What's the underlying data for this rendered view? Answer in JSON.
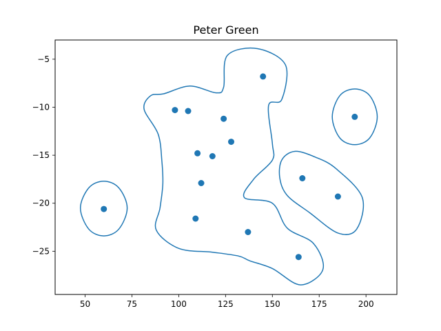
{
  "chart_data": {
    "type": "scatter",
    "title": "Peter Green",
    "xlabel": "",
    "ylabel": "",
    "xlim": [
      34,
      216.5
    ],
    "ylim": [
      -29.5,
      -3
    ],
    "xticks": [
      50,
      75,
      100,
      125,
      150,
      175,
      200
    ],
    "yticks": [
      -5,
      -10,
      -15,
      -20,
      -25
    ],
    "xtick_labels": [
      "50",
      "75",
      "100",
      "125",
      "150",
      "175",
      "200"
    ],
    "ytick_labels": [
      "−5",
      "−10",
      "−15",
      "−20",
      "−25"
    ],
    "grid": false,
    "legend": "none",
    "colors": {
      "series": "#1f77b4",
      "axes": "#000000",
      "background": "#ffffff"
    },
    "points": [
      {
        "x": 60,
        "y": -20.6
      },
      {
        "x": 98,
        "y": -10.3
      },
      {
        "x": 105,
        "y": -10.4
      },
      {
        "x": 110,
        "y": -14.8
      },
      {
        "x": 118,
        "y": -15.1
      },
      {
        "x": 112,
        "y": -17.9
      },
      {
        "x": 109,
        "y": -21.6
      },
      {
        "x": 124,
        "y": -11.2
      },
      {
        "x": 128,
        "y": -13.6
      },
      {
        "x": 145,
        "y": -6.8
      },
      {
        "x": 137,
        "y": -23.0
      },
      {
        "x": 164,
        "y": -25.6
      },
      {
        "x": 166,
        "y": -17.4
      },
      {
        "x": 185,
        "y": -19.3
      },
      {
        "x": 194,
        "y": -11.0
      }
    ],
    "contours": [
      [
        [
          60,
          -17.7
        ],
        [
          68,
          -18.4
        ],
        [
          72.5,
          -20.5
        ],
        [
          68,
          -22.7
        ],
        [
          60,
          -23.4
        ],
        [
          52,
          -22.7
        ],
        [
          47.5,
          -20.5
        ],
        [
          52,
          -18.4
        ]
      ],
      [
        [
          194,
          -8.1
        ],
        [
          202,
          -8.8
        ],
        [
          206,
          -11.0
        ],
        [
          202,
          -13.2
        ],
        [
          194,
          -13.9
        ],
        [
          186,
          -13.2
        ],
        [
          182,
          -11.0
        ],
        [
          186,
          -8.8
        ]
      ],
      [
        [
          162,
          -14.6
        ],
        [
          173,
          -15.2
        ],
        [
          184,
          -16.4
        ],
        [
          198,
          -19.4
        ],
        [
          195,
          -22.7
        ],
        [
          185,
          -23.1
        ],
        [
          170,
          -21.0
        ],
        [
          158,
          -19.2
        ],
        [
          154,
          -17.4
        ],
        [
          155,
          -15.5
        ]
      ],
      [
        [
          92,
          -8.6
        ],
        [
          106,
          -7.8
        ],
        [
          120,
          -8.5
        ],
        [
          124,
          -7.9
        ],
        [
          126,
          -4.6
        ],
        [
          142,
          -3.9
        ],
        [
          157,
          -5.6
        ],
        [
          155,
          -9.2
        ],
        [
          148,
          -9.8
        ],
        [
          150,
          -13.8
        ],
        [
          150,
          -15.5
        ],
        [
          140,
          -17.5
        ],
        [
          135,
          -19.4
        ],
        [
          150,
          -20.0
        ],
        [
          158,
          -22.6
        ],
        [
          172,
          -24.2
        ],
        [
          177,
          -26.9
        ],
        [
          165,
          -28.5
        ],
        [
          150,
          -26.8
        ],
        [
          138,
          -26.0
        ],
        [
          132,
          -25.5
        ],
        [
          118,
          -25.1
        ],
        [
          100,
          -24.7
        ],
        [
          88,
          -22.8
        ],
        [
          90,
          -20.5
        ],
        [
          91.5,
          -18.0
        ],
        [
          91,
          -15.6
        ],
        [
          89,
          -12.8
        ],
        [
          81.5,
          -10.2
        ],
        [
          85,
          -8.8
        ]
      ]
    ]
  }
}
